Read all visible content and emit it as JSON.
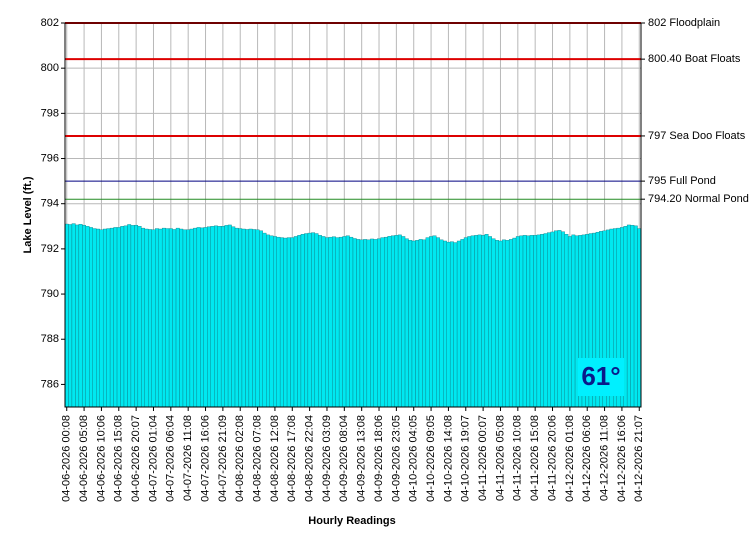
{
  "chart_data": {
    "type": "bar",
    "ylabel": "Lake Level (ft.)",
    "xlabel": "Hourly Readings",
    "annotation": "61°",
    "ylim": [
      785,
      802
    ],
    "yticks": [
      786,
      788,
      790,
      792,
      794,
      796,
      798,
      800,
      802
    ],
    "grid": true,
    "color": "#00e8f0",
    "reference_lines": [
      {
        "value": 802,
        "label": "802 Floodplain",
        "color": "#dd0000"
      },
      {
        "value": 800.4,
        "label": "800.40 Boat Floats",
        "color": "#dd0000"
      },
      {
        "value": 797,
        "label": "797 Sea Doo Floats",
        "color": "#dd0000"
      },
      {
        "value": 795,
        "label": "795 Full Pond",
        "color": "#000080"
      },
      {
        "value": 794.2,
        "label": "794.20 Normal Pond",
        "color": "#228b22"
      }
    ],
    "categories": [
      "04-06-2026 00:08",
      null,
      null,
      null,
      null,
      "04-06-2026 05:08",
      null,
      null,
      null,
      null,
      "04-06-2026 10:06",
      null,
      null,
      null,
      null,
      "04-06-2026 15:08",
      null,
      null,
      null,
      null,
      "04-06-2026 20:07",
      null,
      null,
      null,
      null,
      "04-07-2026 01:04",
      null,
      null,
      null,
      null,
      "04-07-2026 06:04",
      null,
      null,
      null,
      null,
      "04-07-2026 11:08",
      null,
      null,
      null,
      null,
      "04-07-2026 16:06",
      null,
      null,
      null,
      null,
      "04-07-2026 21:09",
      null,
      null,
      null,
      null,
      "04-08-2026 02:08",
      null,
      null,
      null,
      null,
      "04-08-2026 07:08",
      null,
      null,
      null,
      null,
      "04-08-2026 12:08",
      null,
      null,
      null,
      null,
      "04-08-2026 17:08",
      null,
      null,
      null,
      null,
      "04-08-2026 22:04",
      null,
      null,
      null,
      null,
      "04-09-2026 03:09",
      null,
      null,
      null,
      null,
      "04-09-2026 08:04",
      null,
      null,
      null,
      null,
      "04-09-2026 13:08",
      null,
      null,
      null,
      null,
      "04-09-2026 18:06",
      null,
      null,
      null,
      null,
      "04-09-2026 23:05",
      null,
      null,
      null,
      null,
      "04-10-2026 04:05",
      null,
      null,
      null,
      null,
      "04-10-2026 09:05",
      null,
      null,
      null,
      null,
      "04-10-2026 14:08",
      null,
      null,
      null,
      null,
      "04-10-2026 19:07",
      null,
      null,
      null,
      null,
      "04-11-2026 00:07",
      null,
      null,
      null,
      null,
      "04-11-2026 05:08",
      null,
      null,
      null,
      null,
      "04-11-2026 10:08",
      null,
      null,
      null,
      null,
      "04-11-2026 15:08",
      null,
      null,
      null,
      null,
      "04-11-2026 20:06",
      null,
      null,
      null,
      null,
      "04-12-2026 01:08",
      null,
      null,
      null,
      null,
      "04-12-2026 06:06",
      null,
      null,
      null,
      null,
      "04-12-2026 11:08",
      null,
      null,
      null,
      null,
      "04-12-2026 16:06",
      null,
      null,
      null,
      null,
      "04-12-2026 21:07"
    ],
    "values": [
      793.1,
      793.08,
      793.12,
      793.06,
      793.09,
      793.05,
      793.0,
      792.95,
      792.9,
      792.88,
      792.85,
      792.88,
      792.9,
      792.92,
      792.95,
      792.95,
      793.0,
      793.02,
      793.08,
      793.04,
      793.05,
      793.0,
      792.92,
      792.88,
      792.86,
      792.85,
      792.9,
      792.88,
      792.92,
      792.9,
      792.9,
      792.86,
      792.92,
      792.88,
      792.85,
      792.85,
      792.88,
      792.92,
      792.95,
      792.93,
      792.95,
      792.98,
      793.0,
      793.02,
      793.0,
      793.0,
      793.04,
      793.06,
      792.98,
      792.92,
      792.9,
      792.88,
      792.86,
      792.88,
      792.86,
      792.85,
      792.8,
      792.7,
      792.62,
      792.58,
      792.55,
      792.52,
      792.5,
      792.48,
      792.5,
      792.5,
      792.55,
      792.6,
      792.65,
      792.68,
      792.7,
      792.72,
      792.68,
      792.6,
      792.55,
      792.5,
      792.52,
      792.54,
      792.5,
      792.52,
      792.55,
      792.58,
      792.52,
      792.46,
      792.42,
      792.4,
      792.42,
      792.4,
      792.44,
      792.42,
      792.45,
      792.5,
      792.52,
      792.56,
      792.58,
      792.6,
      792.62,
      792.55,
      792.45,
      792.38,
      792.35,
      792.38,
      792.42,
      792.4,
      792.5,
      792.55,
      792.58,
      792.5,
      792.4,
      792.35,
      792.3,
      792.32,
      792.28,
      792.35,
      792.42,
      792.5,
      792.55,
      792.58,
      792.6,
      792.62,
      792.6,
      792.65,
      792.55,
      792.45,
      792.38,
      792.35,
      792.4,
      792.38,
      792.42,
      792.48,
      792.55,
      792.58,
      792.6,
      792.58,
      792.6,
      792.6,
      792.62,
      792.65,
      792.68,
      792.72,
      792.75,
      792.8,
      792.82,
      792.76,
      792.65,
      792.55,
      792.62,
      792.58,
      792.6,
      792.62,
      792.65,
      792.68,
      792.7,
      792.74,
      792.78,
      792.8,
      792.84,
      792.88,
      792.9,
      792.92,
      792.95,
      793.0,
      793.06,
      793.05,
      793.02,
      792.9
    ]
  }
}
